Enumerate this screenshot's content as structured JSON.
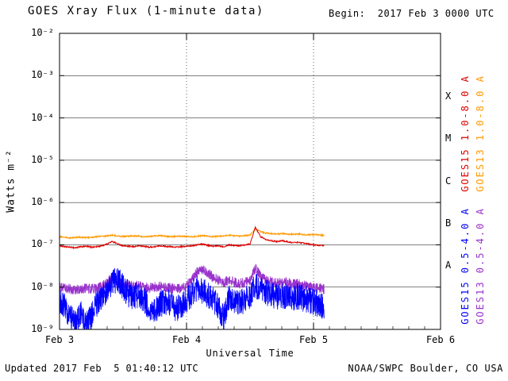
{
  "title": "GOES Xray Flux (1-minute data)",
  "begin_label": "Begin:  2017 Feb 3 0000 UTC",
  "footer": {
    "updated": "Updated 2017 Feb  5 01:40:12 UTC",
    "source": "NOAA/SWPC Boulder, CO USA"
  },
  "chart_data": {
    "type": "line",
    "title": "GOES Xray Flux (1-minute data)",
    "xlabel": "Universal Time",
    "ylabel": "Watts m⁻²",
    "x_unit_hours_since": "2017 Feb 3 0000 UTC",
    "xlim_hours": [
      0,
      72
    ],
    "y_scale": "log",
    "ylim": [
      1e-09,
      0.01
    ],
    "grid": {
      "horizontal_decades": true,
      "vertical_dotted_at_hours": [
        24,
        48
      ]
    },
    "x_ticks": [
      {
        "hours": 0,
        "label": "Feb 3"
      },
      {
        "hours": 24,
        "label": "Feb 4"
      },
      {
        "hours": 48,
        "label": "Feb 5"
      },
      {
        "hours": 72,
        "label": "Feb 6"
      }
    ],
    "y_ticks": [
      {
        "exp": -2,
        "label": "10⁻²"
      },
      {
        "exp": -3,
        "label": "10⁻³"
      },
      {
        "exp": -4,
        "label": "10⁻⁴"
      },
      {
        "exp": -5,
        "label": "10⁻⁵"
      },
      {
        "exp": -6,
        "label": "10⁻⁶"
      },
      {
        "exp": -7,
        "label": "10⁻⁷"
      },
      {
        "exp": -8,
        "label": "10⁻⁸"
      },
      {
        "exp": -9,
        "label": "10⁻⁹"
      }
    ],
    "flare_classes": [
      {
        "label": "X",
        "exp_center": -3.5
      },
      {
        "label": "M",
        "exp_center": -4.5
      },
      {
        "label": "C",
        "exp_center": -5.5
      },
      {
        "label": "B",
        "exp_center": -6.5
      },
      {
        "label": "A",
        "exp_center": -7.5
      }
    ],
    "x_hours": [
      0,
      1,
      2,
      3,
      4,
      5,
      6,
      7,
      8,
      9,
      10,
      11,
      12,
      13,
      14,
      15,
      16,
      17,
      18,
      19,
      20,
      21,
      22,
      23,
      24,
      25,
      26,
      27,
      28,
      29,
      30,
      31,
      32,
      33,
      34,
      35,
      36,
      37,
      38,
      39,
      40,
      41,
      42,
      43,
      44,
      45,
      46,
      47,
      48,
      49,
      50
    ],
    "series": [
      {
        "name": "GOES15 1.0-8.0 A",
        "satellite": "GOES15",
        "wavelength_angstrom": "1.0-8.0",
        "color": "#dd0000",
        "noise": 0.015,
        "width": 1,
        "legend_col": 0,
        "legend_row": 0,
        "y": [
          9.5e-08,
          9e-08,
          8.8e-08,
          8.5e-08,
          9e-08,
          9.2e-08,
          8.8e-08,
          9e-08,
          9.5e-08,
          1.05e-07,
          1.2e-07,
          1.05e-07,
          9.5e-08,
          9.2e-08,
          9e-08,
          9.5e-08,
          9.2e-08,
          8.8e-08,
          9e-08,
          9.5e-08,
          9.2e-08,
          9e-08,
          8.8e-08,
          9e-08,
          9.2e-08,
          9.5e-08,
          1e-07,
          1.05e-07,
          9.8e-08,
          9.2e-08,
          9.5e-08,
          9e-08,
          1e-07,
          9.7e-08,
          9.5e-08,
          1e-07,
          1.05e-07,
          2.6e-07,
          1.55e-07,
          1.35e-07,
          1.25e-07,
          1.2e-07,
          1.25e-07,
          1.18e-07,
          1.12e-07,
          1.15e-07,
          1.1e-07,
          1.05e-07,
          1e-07,
          9.7e-08,
          9.5e-08
        ]
      },
      {
        "name": "GOES13 1.0-8.0 A",
        "satellite": "GOES13",
        "wavelength_angstrom": "1.0-8.0",
        "color": "#ff9900",
        "noise": 0.015,
        "width": 1,
        "legend_col": 1,
        "legend_row": 0,
        "y": [
          1.55e-07,
          1.5e-07,
          1.45e-07,
          1.5e-07,
          1.52e-07,
          1.48e-07,
          1.5e-07,
          1.55e-07,
          1.6e-07,
          1.62e-07,
          1.7e-07,
          1.62e-07,
          1.58e-07,
          1.6e-07,
          1.62e-07,
          1.6e-07,
          1.55e-07,
          1.58e-07,
          1.62e-07,
          1.65e-07,
          1.6e-07,
          1.55e-07,
          1.58e-07,
          1.6e-07,
          1.58e-07,
          1.55e-07,
          1.6e-07,
          1.65e-07,
          1.6e-07,
          1.55e-07,
          1.6e-07,
          1.62e-07,
          1.68e-07,
          1.65e-07,
          1.6e-07,
          1.65e-07,
          1.7e-07,
          2.4e-07,
          2.05e-07,
          1.9e-07,
          1.85e-07,
          1.8e-07,
          1.85e-07,
          1.8e-07,
          1.78e-07,
          1.8e-07,
          1.75e-07,
          1.72e-07,
          1.75e-07,
          1.7e-07,
          1.68e-07
        ]
      },
      {
        "name": "GOES15 0.5-4.0 A",
        "satellite": "GOES15",
        "wavelength_angstrom": "0.5-4.0",
        "color": "#0000ff",
        "noise": 0.32,
        "width": 0.8,
        "legend_col": 0,
        "legend_row": 1,
        "y": [
          5e-09,
          3.5e-09,
          2e-09,
          1.4e-09,
          2.5e-09,
          1.2e-09,
          2e-09,
          4e-09,
          5e-09,
          9e-09,
          1.3e-08,
          1.5e-08,
          1e-08,
          7e-09,
          6e-09,
          6.5e-09,
          5e-09,
          3e-09,
          2.5e-09,
          4e-09,
          4.5e-09,
          4e-09,
          3e-09,
          3.5e-09,
          5e-09,
          7e-09,
          9e-09,
          8e-09,
          6.5e-09,
          5e-09,
          3.5e-09,
          1.8e-09,
          5.5e-09,
          4.5e-09,
          4e-09,
          5e-09,
          6e-09,
          1.1e-08,
          9e-09,
          7.5e-09,
          6.5e-09,
          6e-09,
          6.5e-09,
          6e-09,
          5.5e-09,
          6e-09,
          5.5e-09,
          5e-09,
          4.5e-09,
          4e-09,
          3.5e-09
        ]
      },
      {
        "name": "GOES13 0.5-4.0 A",
        "satellite": "GOES13",
        "wavelength_angstrom": "0.5-4.0",
        "color": "#9932cc",
        "noise": 0.12,
        "width": 0.8,
        "legend_col": 1,
        "legend_row": 1,
        "y": [
          1e-08,
          9.5e-09,
          9e-09,
          8.5e-09,
          9e-09,
          9.5e-09,
          9e-09,
          9.5e-09,
          1.05e-08,
          1.3e-08,
          1.7e-08,
          1.4e-08,
          1.2e-08,
          1.1e-08,
          1.05e-08,
          1.1e-08,
          1e-08,
          9.5e-09,
          1e-08,
          1.05e-08,
          1e-08,
          9.5e-09,
          9e-09,
          9.5e-09,
          1.05e-08,
          1.5e-08,
          2.3e-08,
          2.6e-08,
          2.1e-08,
          1.7e-08,
          1.45e-08,
          1.25e-08,
          1.5e-08,
          1.3e-08,
          1.2e-08,
          1.3e-08,
          1.4e-08,
          2.8e-08,
          1.8e-08,
          1.5e-08,
          1.35e-08,
          1.25e-08,
          1.35e-08,
          1.25e-08,
          1.15e-08,
          1.2e-08,
          1.1e-08,
          1.05e-08,
          1e-08,
          9.5e-09,
          9e-09
        ]
      }
    ]
  }
}
